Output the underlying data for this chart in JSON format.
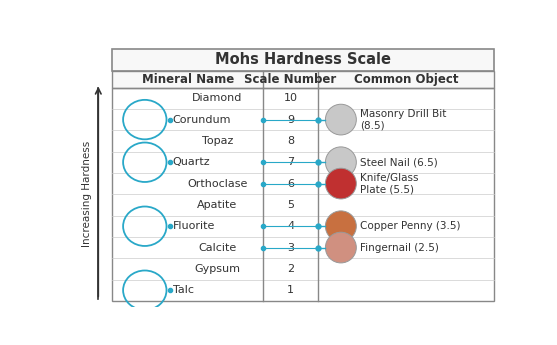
{
  "title": "Mohs Hardness Scale",
  "col1_header": "Mineral Name",
  "col2_header": "Scale Number",
  "col3_header": "Common Object",
  "minerals": [
    "Diamond",
    "Corundum",
    "Topaz",
    "Quartz",
    "Orthoclase",
    "Apatite",
    "Fluorite",
    "Calcite",
    "Gypsum",
    "Talc"
  ],
  "scale_numbers": [
    "10",
    "9",
    "8",
    "7",
    "6",
    "5",
    "4",
    "3",
    "2",
    "1"
  ],
  "circled_minerals_idx": [
    1,
    3,
    6,
    9
  ],
  "circled_minerals_names": [
    "Corundum",
    "Quartz",
    "Fluorite",
    "Talc"
  ],
  "objects_info": [
    {
      "label": "Masonry Drill Bit\n(8.5)",
      "hardness": 8.5
    },
    {
      "label": "Steel Nail (6.5)",
      "hardness": 6.5
    },
    {
      "label": "Knife/Glass\nPlate (5.5)",
      "hardness": 5.5
    },
    {
      "label": "Copper Penny (3.5)",
      "hardness": 3.5
    },
    {
      "label": "Fingernail (2.5)",
      "hardness": 2.5
    }
  ],
  "bg_color": "#ffffff",
  "border_color": "#888888",
  "title_bg": "#f8f8f8",
  "header_bg": "#f8f8f8",
  "grid_color": "#cccccc",
  "dot_color": "#29a8c8",
  "line_color": "#29a8c8",
  "circle_color": "#29a8c8",
  "text_color": "#333333",
  "ylabel": "Increasing Hardness",
  "title_fontsize": 10.5,
  "header_fontsize": 8.5,
  "cell_fontsize": 8.0,
  "obj_fontsize": 7.5
}
